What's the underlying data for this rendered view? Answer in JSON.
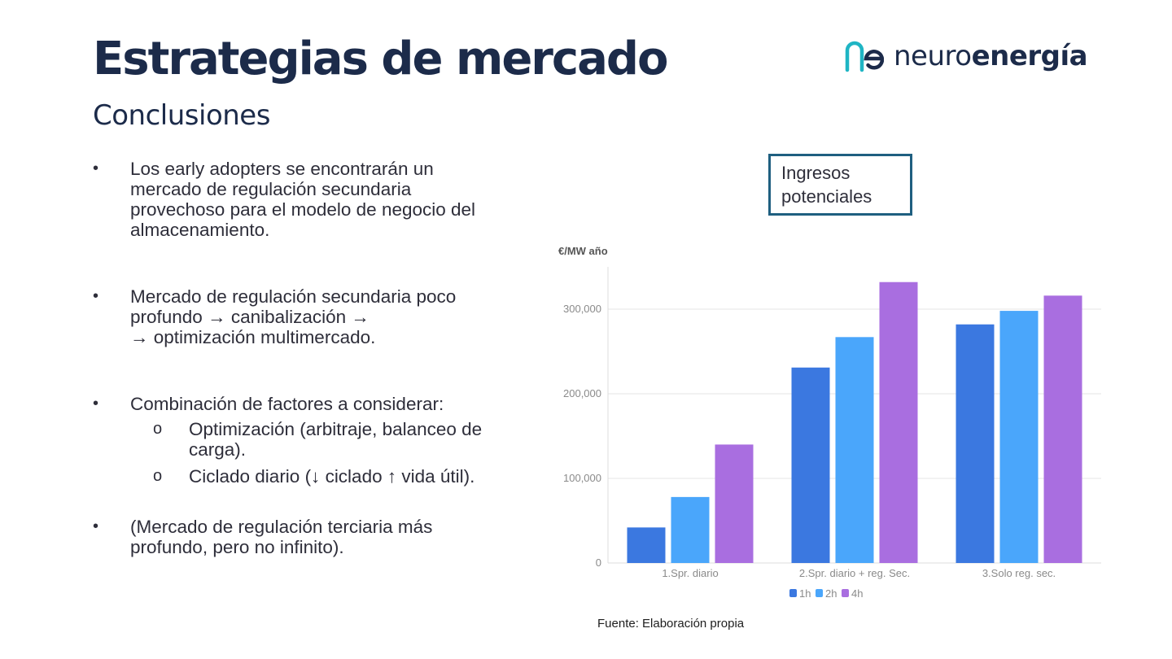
{
  "slide": {
    "title": "Estrategias de mercado",
    "subtitle": "Conclusiones"
  },
  "logo": {
    "text_light": "neuro",
    "text_bold": "energía",
    "colors": {
      "mark": "#1fb5c4",
      "text": "#1c2b4a"
    }
  },
  "bullets": [
    {
      "text": "Los early adopters se encontrarán un mercado de regulación secundaria provechoso para el modelo de negocio del almacenamiento."
    },
    {
      "line1": "Mercado de regulación secundaria poco",
      "line2": "profundo → canibalización →",
      "line3": "→ optimización multimercado."
    },
    {
      "text": "Combinación de factores a considerar:",
      "sub": [
        "Optimización (arbitraje, balanceo de carga).",
        "Ciclado diario (↓ ciclado ↑ vida útil)."
      ]
    },
    {
      "text": "(Mercado de regulación terciaria más profundo, pero no infinito)."
    }
  ],
  "callout": {
    "line1": "Ingresos",
    "line2": "potenciales",
    "border_color": "#1f5f80"
  },
  "source": "Fuente: Elaboración propia",
  "chart_data": {
    "type": "bar",
    "unit_label": "€/MW año",
    "categories": [
      "1.Spr. diario",
      "2.Spr. diario + reg. Sec.",
      "3.Solo reg. sec."
    ],
    "series": [
      {
        "name": "1h",
        "color": "#3b78e0",
        "values": [
          42000,
          231000,
          282000
        ]
      },
      {
        "name": "2h",
        "color": "#4aa6fb",
        "values": [
          78000,
          267000,
          298000
        ]
      },
      {
        "name": "4h",
        "color": "#a96ee0",
        "values": [
          140000,
          332000,
          316000
        ]
      }
    ],
    "ylim": [
      0,
      350000
    ],
    "yticks": [
      0,
      100000,
      200000,
      300000
    ],
    "ytick_labels": [
      "0",
      "100,000",
      "200,000",
      "300,000"
    ],
    "grid": true,
    "legend": "bottom-center"
  }
}
